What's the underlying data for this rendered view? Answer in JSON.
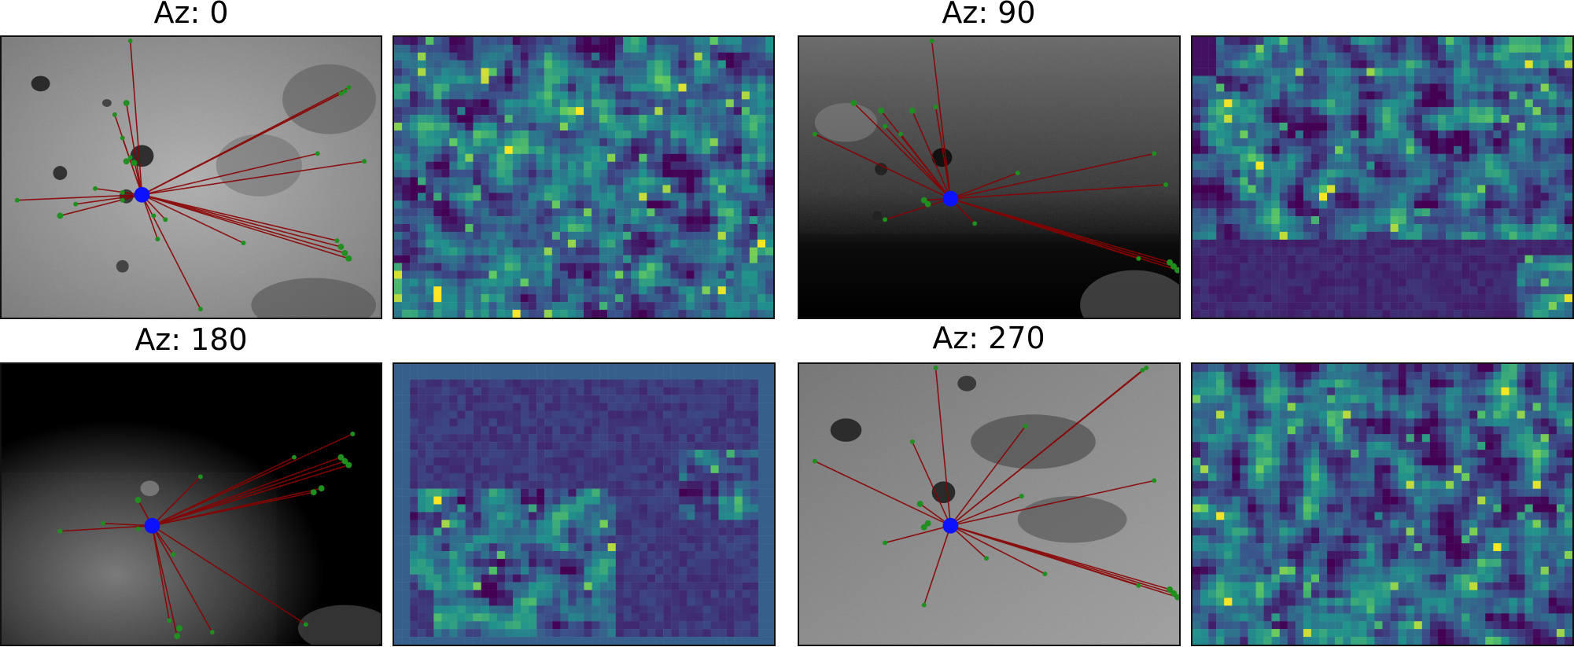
{
  "panels": [
    {
      "title": "Az: 0",
      "shade": "light"
    },
    {
      "title": "Az: 90",
      "shade": "dark-lit"
    },
    {
      "title": "Az: 180",
      "shade": "dark"
    },
    {
      "title": "Az: 270",
      "shade": "mid"
    }
  ],
  "colors": {
    "match_line": "#8b0000",
    "keypoint": "#1f8f1f",
    "anchor_point": "#0a12ff",
    "heatmap_low": "#440154",
    "heatmap_mid": "#21908c",
    "heatmap_high": "#fde725"
  }
}
